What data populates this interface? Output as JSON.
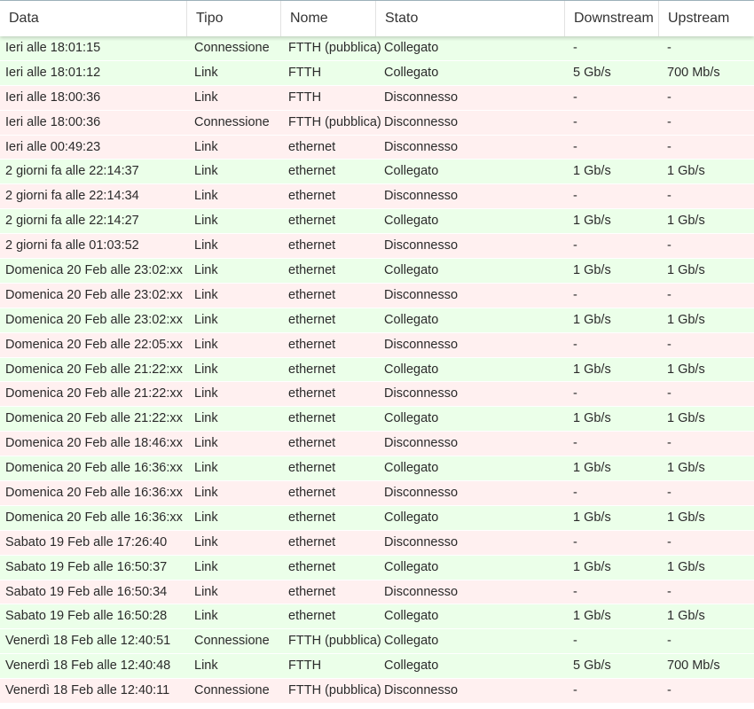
{
  "table": {
    "headers": [
      "Data",
      "Tipo",
      "Nome",
      "Stato",
      "Downstream",
      "Upstream"
    ],
    "rows": [
      [
        "Ieri alle 18:01:15",
        "Connessione",
        "FTTH (pubblica)",
        "Collegato",
        "-",
        "-"
      ],
      [
        "Ieri alle 18:01:12",
        "Link",
        "FTTH",
        "Collegato",
        "5 Gb/s",
        "700 Mb/s"
      ],
      [
        "Ieri alle 18:00:36",
        "Link",
        "FTTH",
        "Disconnesso",
        "-",
        "-"
      ],
      [
        "Ieri alle 18:00:36",
        "Connessione",
        "FTTH (pubblica)",
        "Disconnesso",
        "-",
        "-"
      ],
      [
        "Ieri alle 00:49:23",
        "Link",
        "ethernet",
        "Disconnesso",
        "-",
        "-"
      ],
      [
        "2 giorni fa alle 22:14:37",
        "Link",
        "ethernet",
        "Collegato",
        "1 Gb/s",
        "1 Gb/s"
      ],
      [
        "2 giorni fa alle 22:14:34",
        "Link",
        "ethernet",
        "Disconnesso",
        "-",
        "-"
      ],
      [
        "2 giorni fa alle 22:14:27",
        "Link",
        "ethernet",
        "Collegato",
        "1 Gb/s",
        "1 Gb/s"
      ],
      [
        "2 giorni fa alle 01:03:52",
        "Link",
        "ethernet",
        "Disconnesso",
        "-",
        "-"
      ],
      [
        "Domenica 20 Feb alle 23:02:xx",
        "Link",
        "ethernet",
        "Collegato",
        "1 Gb/s",
        "1 Gb/s"
      ],
      [
        "Domenica 20 Feb alle 23:02:xx",
        "Link",
        "ethernet",
        "Disconnesso",
        "-",
        "-"
      ],
      [
        "Domenica 20 Feb alle 23:02:xx",
        "Link",
        "ethernet",
        "Collegato",
        "1 Gb/s",
        "1 Gb/s"
      ],
      [
        "Domenica 20 Feb alle 22:05:xx",
        "Link",
        "ethernet",
        "Disconnesso",
        "-",
        "-"
      ],
      [
        "Domenica 20 Feb alle 21:22:xx",
        "Link",
        "ethernet",
        "Collegato",
        "1 Gb/s",
        "1 Gb/s"
      ],
      [
        "Domenica 20 Feb alle 21:22:xx",
        "Link",
        "ethernet",
        "Disconnesso",
        "-",
        "-"
      ],
      [
        "Domenica 20 Feb alle 21:22:xx",
        "Link",
        "ethernet",
        "Collegato",
        "1 Gb/s",
        "1 Gb/s"
      ],
      [
        "Domenica 20 Feb alle 18:46:xx",
        "Link",
        "ethernet",
        "Disconnesso",
        "-",
        "-"
      ],
      [
        "Domenica 20 Feb alle 16:36:xx",
        "Link",
        "ethernet",
        "Collegato",
        "1 Gb/s",
        "1 Gb/s"
      ],
      [
        "Domenica 20 Feb alle 16:36:xx",
        "Link",
        "ethernet",
        "Disconnesso",
        "-",
        "-"
      ],
      [
        "Domenica 20 Feb alle 16:36:xx",
        "Link",
        "ethernet",
        "Collegato",
        "1 Gb/s",
        "1 Gb/s"
      ],
      [
        "Sabato 19 Feb alle 17:26:40",
        "Link",
        "ethernet",
        "Disconnesso",
        "-",
        "-"
      ],
      [
        "Sabato 19 Feb alle 16:50:37",
        "Link",
        "ethernet",
        "Collegato",
        "1 Gb/s",
        "1 Gb/s"
      ],
      [
        "Sabato 19 Feb alle 16:50:34",
        "Link",
        "ethernet",
        "Disconnesso",
        "-",
        "-"
      ],
      [
        "Sabato 19 Feb alle 16:50:28",
        "Link",
        "ethernet",
        "Collegato",
        "1 Gb/s",
        "1 Gb/s"
      ],
      [
        "Venerdì 18 Feb alle 12:40:51",
        "Connessione",
        "FTTH (pubblica)",
        "Collegato",
        "-",
        "-"
      ],
      [
        "Venerdì 18 Feb alle 12:40:48",
        "Link",
        "FTTH",
        "Collegato",
        "5 Gb/s",
        "700 Mb/s"
      ],
      [
        "Venerdì 18 Feb alle 12:40:11",
        "Connessione",
        "FTTH (pubblica)",
        "Disconnesso",
        "-",
        "-"
      ]
    ]
  },
  "colors": {
    "connected_row": "#ebffe9",
    "disconnected_row": "#fff0f0",
    "connected_status": "Collegato"
  }
}
